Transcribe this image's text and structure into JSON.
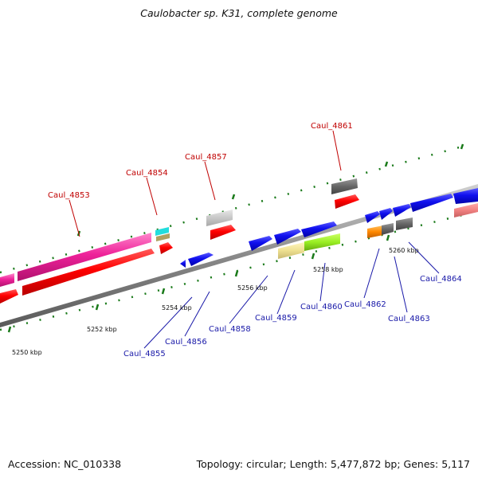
{
  "title": "Caulobacter sp. K31, complete genome",
  "footer": {
    "accession": "Accession: NC_010338",
    "topology": "Topology: circular; Length: 5,477,872 bp; Genes: 5,117"
  },
  "colors": {
    "backbone": "#8a8a8a",
    "tick": "#1a7a1a",
    "top_label": "#c00000",
    "bottom_label": "#1818a8"
  },
  "scale_labels": [
    "5250 kbp",
    "5252 kbp",
    "5254 kbp",
    "5256 kbp",
    "5258 kbp",
    "5260 kbp"
  ],
  "genes_top": [
    "Caul_4853",
    "Caul_4854",
    "Caul_4857",
    "Caul_4861"
  ],
  "genes_bottom": [
    "Caul_4855",
    "Caul_4856",
    "Caul_4858",
    "Caul_4859",
    "Caul_4860",
    "Caul_4862",
    "Caul_4863",
    "Caul_4864"
  ]
}
